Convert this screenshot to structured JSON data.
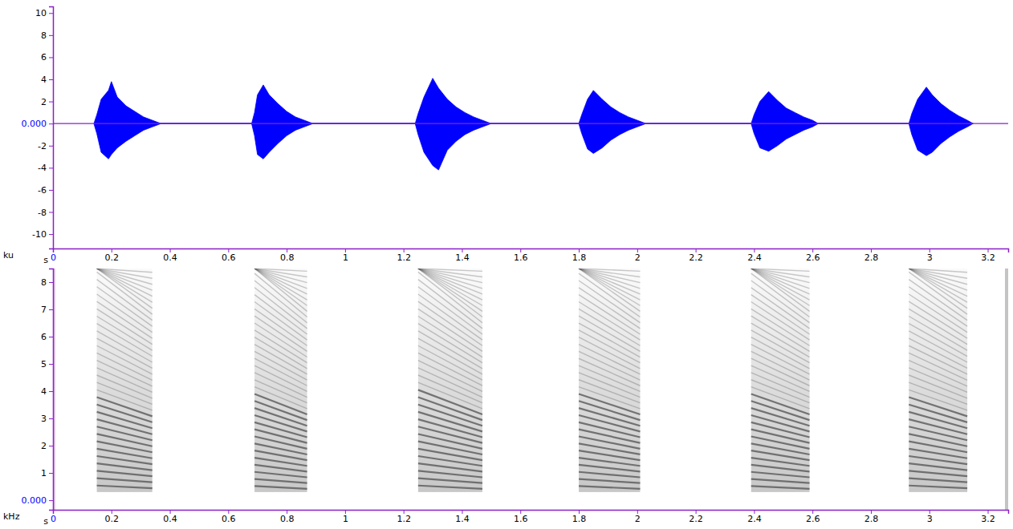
{
  "chart_data": [
    {
      "type": "area",
      "x_label": "s",
      "y_label": "ku",
      "color": "#0000ff",
      "xlim": [
        0,
        3.27
      ],
      "ylim": [
        -11.3,
        10.6
      ],
      "xticks": [
        0,
        0.2,
        0.4,
        0.6,
        0.8,
        1,
        1.2,
        1.4,
        1.6,
        1.8,
        2,
        2.2,
        2.4,
        2.6,
        2.8,
        3,
        3.2
      ],
      "yticks": [
        -10,
        -8,
        -6,
        -4,
        -2,
        {
          "value": 0,
          "label": "0.000"
        },
        2,
        4,
        6,
        8,
        10
      ],
      "x": [
        0.14,
        0.15,
        0.165,
        0.19,
        0.2,
        0.22,
        0.25,
        0.28,
        0.31,
        0.34,
        0.37,
        0.68,
        0.69,
        0.7,
        0.72,
        0.74,
        0.77,
        0.8,
        0.83,
        0.86,
        0.89,
        1.24,
        1.25,
        1.27,
        1.3,
        1.32,
        1.35,
        1.38,
        1.41,
        1.44,
        1.47,
        1.5,
        1.8,
        1.81,
        1.83,
        1.85,
        1.88,
        1.91,
        1.94,
        1.97,
        2.0,
        2.03,
        2.39,
        2.4,
        2.42,
        2.45,
        2.48,
        2.51,
        2.54,
        2.57,
        2.6,
        2.62,
        2.93,
        2.94,
        2.96,
        2.99,
        3.01,
        3.04,
        3.07,
        3.1,
        3.13,
        3.15
      ],
      "series": [
        {
          "values": [
            0,
            0.8,
            2.2,
            3.0,
            3.8,
            2.4,
            1.6,
            1.1,
            0.6,
            0.3,
            0,
            0,
            1.0,
            2.6,
            3.5,
            2.6,
            1.8,
            1.1,
            0.6,
            0.3,
            0,
            0,
            0.9,
            2.4,
            4.1,
            3.2,
            2.2,
            1.5,
            1.0,
            0.6,
            0.3,
            0,
            0,
            0.8,
            2.2,
            3.0,
            2.2,
            1.5,
            1.0,
            0.6,
            0.3,
            0,
            0,
            0.8,
            2.0,
            2.9,
            2.1,
            1.4,
            1.0,
            0.6,
            0.3,
            0,
            0,
            0.9,
            2.2,
            3.3,
            2.6,
            1.8,
            1.2,
            0.7,
            0.3,
            0
          ]
        },
        {
          "values": [
            0,
            -0.9,
            -2.6,
            -3.2,
            -2.8,
            -2.2,
            -1.6,
            -1.1,
            -0.6,
            -0.3,
            0,
            0,
            -1.1,
            -2.8,
            -3.2,
            -2.6,
            -1.8,
            -1.1,
            -0.6,
            -0.3,
            0,
            0,
            -1.0,
            -2.6,
            -3.8,
            -4.2,
            -2.4,
            -1.6,
            -1.0,
            -0.6,
            -0.3,
            0,
            0,
            -0.9,
            -2.3,
            -2.7,
            -2.2,
            -1.5,
            -1.0,
            -0.6,
            -0.3,
            0,
            0,
            -0.9,
            -2.2,
            -2.5,
            -2.0,
            -1.4,
            -1.0,
            -0.6,
            -0.3,
            0,
            0,
            -1.0,
            -2.4,
            -2.9,
            -2.6,
            -1.8,
            -1.2,
            -0.7,
            -0.3,
            0
          ]
        }
      ]
    },
    {
      "type": "spectrogram",
      "x_label": "s",
      "y_label": "kHz",
      "color": "#505050",
      "xlim": [
        0,
        3.27
      ],
      "ylim": [
        -0.35,
        8.5
      ],
      "xticks": [
        0,
        0.2,
        0.4,
        0.6,
        0.8,
        1,
        1.2,
        1.4,
        1.6,
        1.8,
        2,
        2.2,
        2.4,
        2.6,
        2.8,
        3,
        3.2
      ],
      "yticks": [
        {
          "value": 0,
          "label": "0.000"
        },
        1,
        2,
        3,
        4,
        5,
        6,
        7,
        8
      ],
      "calls": [
        {
          "start": 0.15,
          "end": 0.34,
          "fmin": 0.3,
          "fmax": 8.5,
          "f0_start": 0.27,
          "f0_end": 0.22
        },
        {
          "start": 0.69,
          "end": 0.87,
          "fmin": 0.3,
          "fmax": 8.5,
          "f0_start": 0.26,
          "f0_end": 0.21
        },
        {
          "start": 1.25,
          "end": 1.47,
          "fmin": 0.3,
          "fmax": 8.5,
          "f0_start": 0.27,
          "f0_end": 0.21
        },
        {
          "start": 1.8,
          "end": 2.01,
          "fmin": 0.3,
          "fmax": 8.5,
          "f0_start": 0.26,
          "f0_end": 0.21
        },
        {
          "start": 2.39,
          "end": 2.59,
          "fmin": 0.3,
          "fmax": 8.5,
          "f0_start": 0.26,
          "f0_end": 0.21
        },
        {
          "start": 2.93,
          "end": 3.13,
          "fmin": 0.3,
          "fmax": 8.5,
          "f0_start": 0.27,
          "f0_end": 0.22
        }
      ]
    }
  ]
}
